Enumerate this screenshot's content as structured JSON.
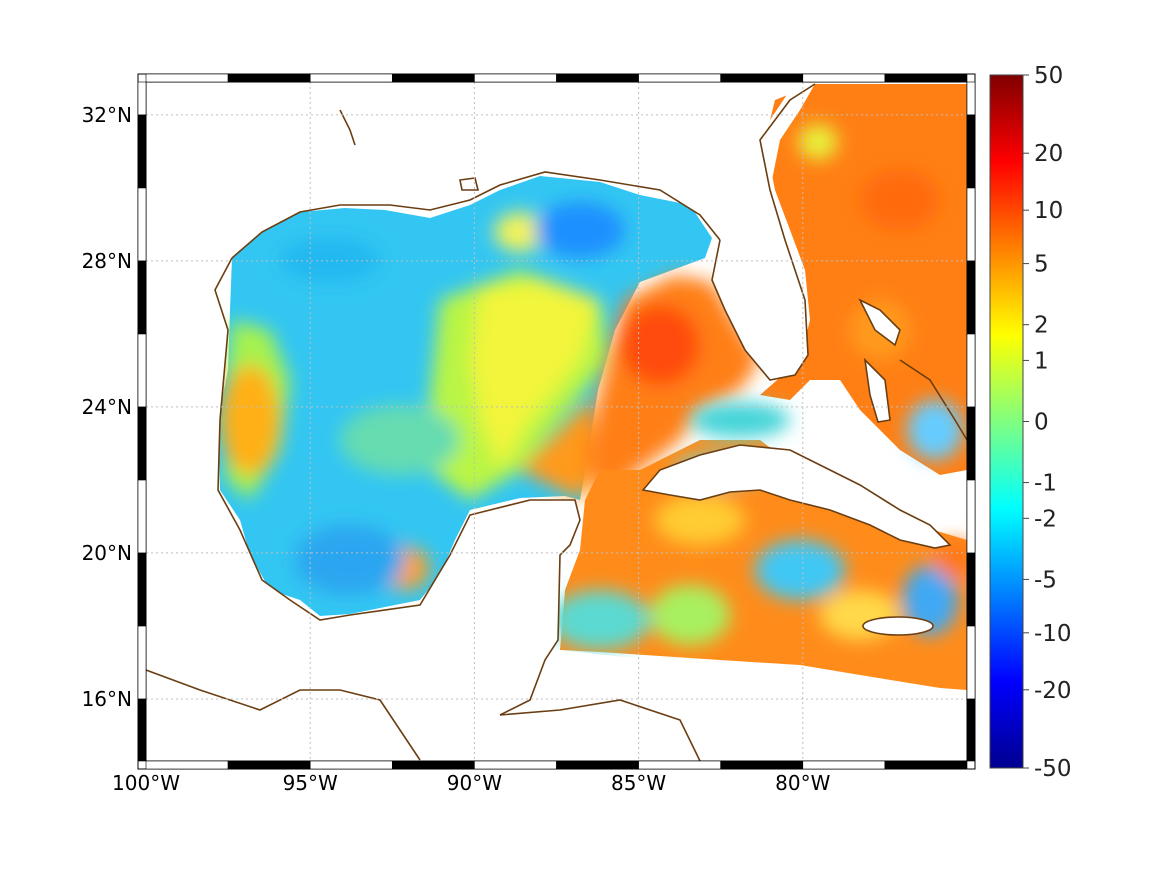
{
  "map": {
    "lon_range": [
      -100,
      -75
    ],
    "lat_range": [
      14.3,
      32.9
    ],
    "projection": "equirectangular",
    "grid": true,
    "grid_style": "dotted",
    "frame_style": "alternating black/white"
  },
  "axes": {
    "lon_ticks": [
      {
        "value": -100,
        "label": "100°W"
      },
      {
        "value": -95,
        "label": "95°W"
      },
      {
        "value": -90,
        "label": "90°W"
      },
      {
        "value": -85,
        "label": "85°W"
      },
      {
        "value": -80,
        "label": "80°W"
      }
    ],
    "lat_ticks": [
      {
        "value": 32,
        "label": "32°N"
      },
      {
        "value": 28,
        "label": "28°N"
      },
      {
        "value": 24,
        "label": "24°N"
      },
      {
        "value": 20,
        "label": "20°N"
      },
      {
        "value": 16,
        "label": "16°N"
      }
    ]
  },
  "colorbar": {
    "scale": "symmetric nonlinear (symlog)",
    "colormap": "jet",
    "ticks": [
      "50",
      "20",
      "10",
      "5",
      "2",
      "1",
      "0",
      "-1",
      "-2",
      "-5",
      "-10",
      "-20",
      "-50"
    ]
  },
  "colors": {
    "coastline": "#6b3e12",
    "frame": "#000000",
    "grid": "#c8c8c8",
    "jet_dark_blue": "#00008f",
    "jet_blue": "#0000ff",
    "jet_cyan": "#00ffff",
    "jet_yellow": "#ffff00",
    "jet_red": "#ff0000",
    "jet_dark_red": "#800000",
    "gulf_field": "#33c6f2",
    "atlantic_field": "#ff7f14",
    "caribbean_field": "#ff8c1a"
  }
}
